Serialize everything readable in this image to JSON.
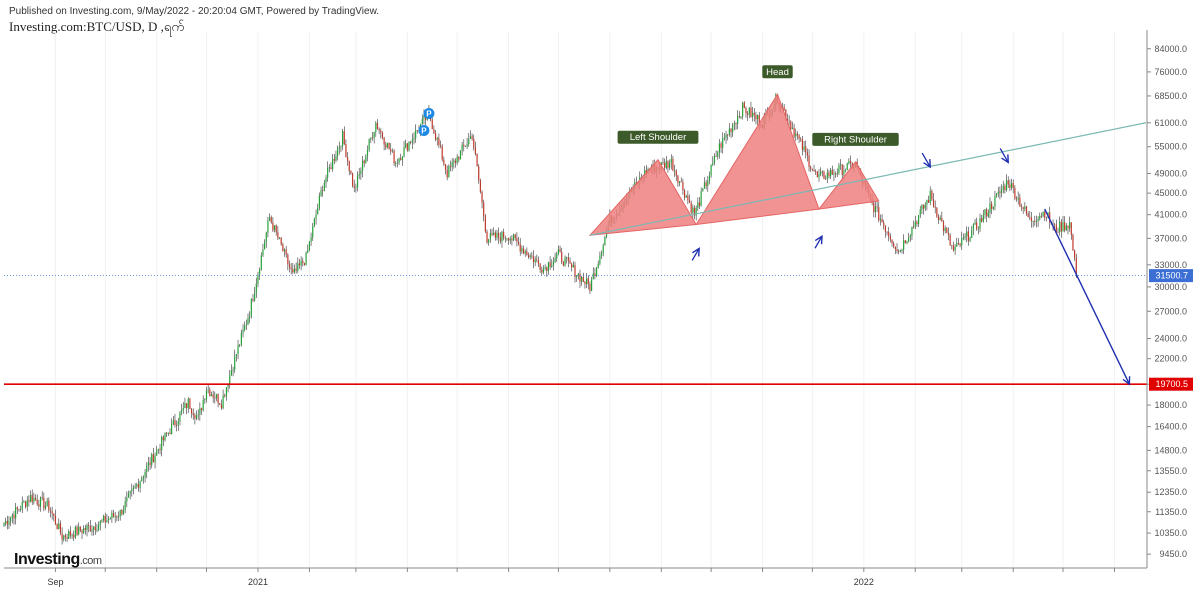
{
  "header": {
    "published": "Published on Investing.com, 9/May/2022 - 20:20:04 GMT, Powered by TradingView.",
    "title": "Investing.com:BTC/USD, D ,ရက်"
  },
  "logo": {
    "brand": "Investing",
    "suffix": ".com"
  },
  "colors": {
    "up": "#26a13a",
    "down": "#c0392b",
    "wick": "#333333",
    "support": "#e00000",
    "neckline": "#7ab8b4",
    "pattern_fill": "#f08080",
    "arrow": "#1f2fb0",
    "current_tag": "#3b6fd4",
    "label_bg": "#3d5a2a"
  },
  "chart_data": {
    "type": "candlestick",
    "title": "Investing.com:BTC/USD, D ,ရက်",
    "y_scale": "log",
    "ylim": [
      8900,
      88000
    ],
    "y_ticks": [
      84000.0,
      76000.0,
      68500.0,
      61000.0,
      55000.0,
      49000.0,
      45000.0,
      41000.0,
      37000.0,
      33000.0,
      30000.0,
      27000.0,
      24000.0,
      22000.0,
      19700.5,
      18000.0,
      16400.0,
      14800.0,
      13550.0,
      12350.0,
      11350.0,
      10350.0,
      9450.0
    ],
    "y_tick_labels": [
      "84000.0",
      "76000.0",
      "68500.0",
      "61000.0",
      "55000.0",
      "49000.0",
      "45000.0",
      "41000.0",
      "37000.0",
      "33000.0",
      "30000.0",
      "27000.0",
      "24000.0",
      "22000.0",
      "",
      "18000.0",
      "16400.0",
      "14800.0",
      "13550.0",
      "12350.0",
      "11350.0",
      "10350.0",
      "9450.0"
    ],
    "x_labels": [
      {
        "date": "2020-09-01",
        "label": "Sep"
      },
      {
        "date": "2021-01-01",
        "label": "2021"
      },
      {
        "date": "2022-01-01",
        "label": "2022"
      }
    ],
    "xlim": [
      "2020-08-01",
      "2022-06-20"
    ],
    "grid": "vertical-only",
    "price_path": [
      [
        "2020-08-01",
        10800
      ],
      [
        "2020-08-17",
        12100
      ],
      [
        "2020-08-28",
        11600
      ],
      [
        "2020-09-05",
        10200
      ],
      [
        "2020-09-25",
        10700
      ],
      [
        "2020-10-10",
        11300
      ],
      [
        "2020-10-21",
        12900
      ],
      [
        "2020-11-05",
        15500
      ],
      [
        "2020-11-20",
        18200
      ],
      [
        "2020-11-26",
        17000
      ],
      [
        "2020-12-01",
        19400
      ],
      [
        "2020-12-10",
        18200
      ],
      [
        "2020-12-16",
        21000
      ],
      [
        "2020-12-27",
        27000
      ],
      [
        "2021-01-08",
        40500
      ],
      [
        "2021-01-22",
        31500
      ],
      [
        "2021-01-30",
        34000
      ],
      [
        "2021-02-09",
        46500
      ],
      [
        "2021-02-21",
        57500
      ],
      [
        "2021-02-28",
        45500
      ],
      [
        "2021-03-13",
        61000
      ],
      [
        "2021-03-25",
        51500
      ],
      [
        "2021-04-14",
        63500
      ],
      [
        "2021-04-25",
        49000
      ],
      [
        "2021-05-10",
        58000
      ],
      [
        "2021-05-19",
        37000
      ],
      [
        "2021-06-01",
        37500
      ],
      [
        "2021-06-22",
        32500
      ],
      [
        "2021-07-01",
        34500
      ],
      [
        "2021-07-20",
        30000
      ],
      [
        "2021-08-01",
        40000
      ],
      [
        "2021-08-23",
        49500
      ],
      [
        "2021-09-07",
        51500
      ],
      [
        "2021-09-21",
        41000
      ],
      [
        "2021-10-06",
        55000
      ],
      [
        "2021-10-20",
        65000
      ],
      [
        "2021-11-01",
        61000
      ],
      [
        "2021-11-10",
        68000
      ],
      [
        "2021-11-26",
        54000
      ],
      [
        "2021-12-04",
        48000
      ],
      [
        "2021-12-27",
        51000
      ],
      [
        "2022-01-05",
        43500
      ],
      [
        "2022-01-22",
        35000
      ],
      [
        "2022-02-10",
        44500
      ],
      [
        "2022-02-24",
        35000
      ],
      [
        "2022-03-10",
        39000
      ],
      [
        "2022-03-29",
        47500
      ],
      [
        "2022-04-11",
        40000
      ],
      [
        "2022-04-20",
        41500
      ],
      [
        "2022-04-26",
        38500
      ],
      [
        "2022-05-05",
        39500
      ],
      [
        "2022-05-09",
        31500
      ]
    ],
    "current_price": {
      "value": 31500.7,
      "label": "31500.7"
    },
    "support_level": {
      "value": 19700.5,
      "label": "19700.5"
    },
    "neckline": {
      "start": [
        "2021-07-20",
        37500
      ],
      "end": [
        "2022-06-20",
        61000
      ]
    },
    "pattern_triangles": [
      [
        [
          "2021-07-20",
          37500
        ],
        [
          "2021-08-30",
          52000
        ],
        [
          "2021-09-22",
          39300
        ]
      ],
      [
        [
          "2021-09-22",
          39300
        ],
        [
          "2021-11-10",
          69000
        ],
        [
          "2021-12-05",
          42000
        ]
      ],
      [
        [
          "2021-12-05",
          42000
        ],
        [
          "2021-12-27",
          51500
        ],
        [
          "2022-01-10",
          43500
        ]
      ]
    ],
    "annotations": [
      {
        "text": "Left Shoulder",
        "date": "2021-08-30",
        "price": 52000
      },
      {
        "text": "Head",
        "date": "2021-11-10",
        "price": 69000
      },
      {
        "text": "Right Shoulder",
        "date": "2021-12-27",
        "price": 51500
      }
    ],
    "markers": [
      {
        "text": "P",
        "date": "2021-04-14",
        "price": 63500
      },
      {
        "text": "P",
        "date": "2021-04-11",
        "price": 59000
      }
    ],
    "up_arrows": [
      [
        "2021-09-22",
        37000
      ],
      [
        "2021-12-05",
        39000
      ]
    ],
    "down_arrows": [
      [
        "2022-02-10",
        49500
      ],
      [
        "2022-03-29",
        50500
      ]
    ],
    "projection": {
      "start": [
        "2022-04-20",
        42000
      ],
      "end": [
        "2022-06-10",
        19700
      ]
    }
  }
}
